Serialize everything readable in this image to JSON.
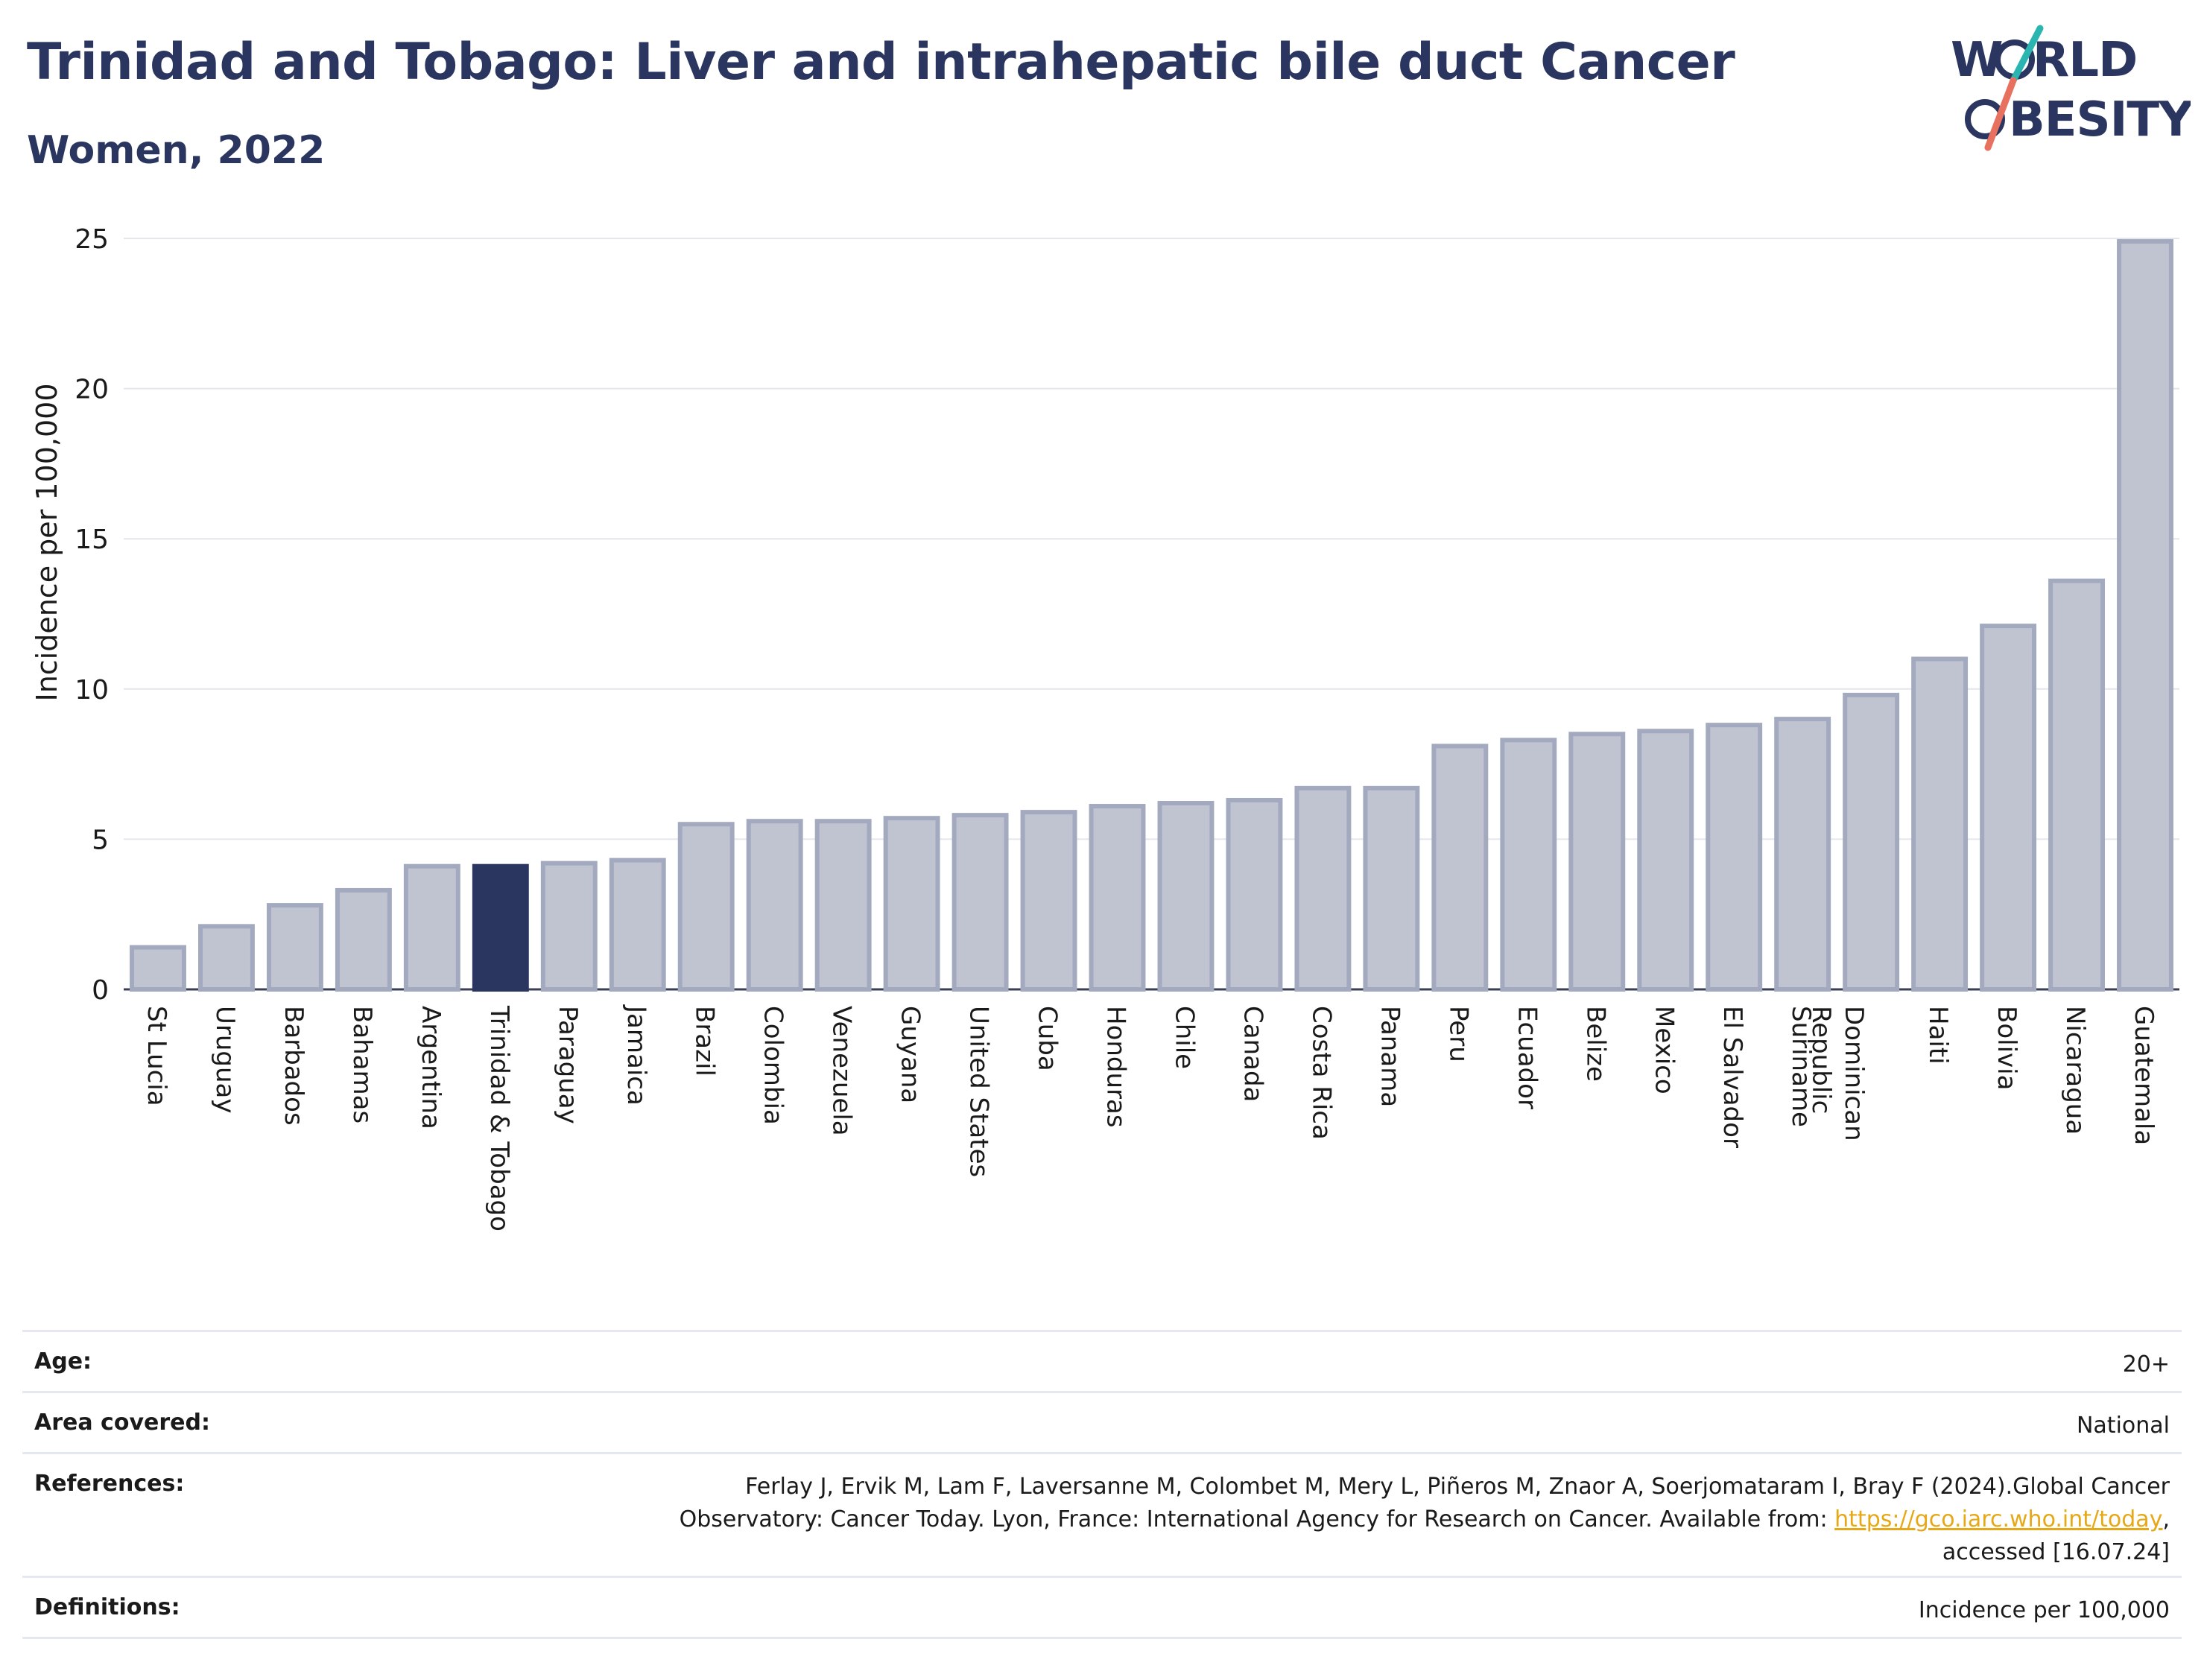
{
  "header": {
    "title": "Trinidad and Tobago: Liver and intrahepatic bile duct Cancer",
    "subtitle": "Women, 2022"
  },
  "logo": {
    "line1": "W",
    "line1b": "RLD",
    "line2": "BESITY",
    "text": "WORLD OBESITY"
  },
  "chart_data": {
    "type": "bar",
    "ylabel": "Incidence per 100,000",
    "xlabel": "",
    "ylim": [
      0,
      25
    ],
    "yticks": [
      0,
      5,
      10,
      15,
      20,
      25
    ],
    "grid": true,
    "highlight": "Trinidad & Tobago",
    "colors": {
      "bar": "#c0c4d1",
      "bar_edge": "#a3a9bf",
      "highlight": "#2a3560",
      "grid": "#e4e6ed",
      "axis": "#3a3f55"
    },
    "categories": [
      "St Lucia",
      "Uruguay",
      "Barbados",
      "Bahamas",
      "Argentina",
      "Trinidad & Tobago",
      "Paraguay",
      "Jamaica",
      "Brazil",
      "Colombia",
      "Venezuela",
      "Guyana",
      "United States",
      "Cuba",
      "Honduras",
      "Chile",
      "Canada",
      "Costa Rica",
      "Panama",
      "Peru",
      "Ecuador",
      "Belize",
      "Mexico",
      "El Salvador",
      "Suriname",
      "Dominican Republic",
      "Haiti",
      "Bolivia",
      "Nicaragua",
      "Guatemala"
    ],
    "values": [
      1.4,
      2.1,
      2.8,
      3.3,
      4.1,
      4.1,
      4.2,
      4.3,
      5.5,
      5.6,
      5.6,
      5.7,
      5.8,
      5.9,
      6.1,
      6.2,
      6.3,
      6.7,
      6.7,
      8.1,
      8.3,
      8.5,
      8.6,
      8.8,
      9.0,
      9.8,
      11.0,
      12.1,
      13.6,
      24.9
    ]
  },
  "meta": {
    "age_label": "Age:",
    "age_value": "20+",
    "area_label": "Area covered:",
    "area_value": "National",
    "refs_label": "References:",
    "refs_line1": "Ferlay J, Ervik M, Lam F, Laversanne M, Colombet M, Mery L, Piñeros M, Znaor A, Soerjomataram I, Bray F (2024).Global Cancer",
    "refs_line2": "Observatory: Cancer Today. Lyon, France: International Agency for Research on Cancer. Available from: ",
    "refs_link": "https://gco.iarc.who.int/today",
    "refs_line2_end": ",",
    "refs_line3": "accessed [16.07.24]",
    "defs_label": "Definitions:",
    "defs_value": "Incidence per 100,000"
  }
}
